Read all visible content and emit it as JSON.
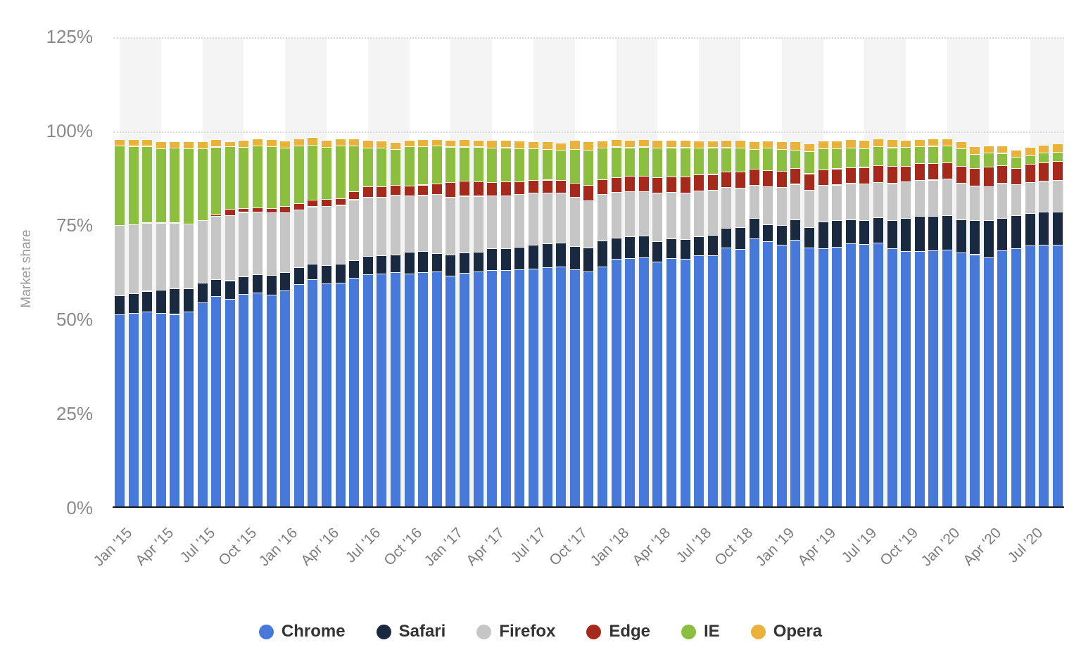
{
  "y_axis": {
    "title": "Market share",
    "ticks": [
      "0%",
      "25%",
      "50%",
      "75%",
      "100%",
      "125%"
    ]
  },
  "x_axis": {
    "tick_labels": [
      "Jan '15",
      "Apr '15",
      "Jul '15",
      "Oct '15",
      "Jan '16",
      "Apr '16",
      "Jul '16",
      "Oct '16",
      "Jan '17",
      "Apr '17",
      "Jul '17",
      "Oct '17",
      "Jan '18",
      "Apr '18",
      "Jul '18",
      "Oct '18",
      "Jan '19",
      "Apr '19",
      "Jul '19",
      "Oct '19",
      "Jan '20",
      "Apr '20",
      "Jul '20"
    ]
  },
  "legend": {
    "items": [
      {
        "label": "Chrome",
        "color": "#4679DA"
      },
      {
        "label": "Safari",
        "color": "#19293F"
      },
      {
        "label": "Firefox",
        "color": "#C6C6C6"
      },
      {
        "label": "Edge",
        "color": "#A52A1C"
      },
      {
        "label": "IE",
        "color": "#8CBF3F"
      },
      {
        "label": "Opera",
        "color": "#E9B23A"
      }
    ]
  },
  "chart_data": {
    "type": "bar",
    "stacked": true,
    "unit": "%",
    "title": "",
    "xlabel": "",
    "ylabel": "Market share",
    "ylim": [
      0,
      125
    ],
    "gridlines_visible_at": [
      100,
      125
    ],
    "legend_position": "bottom",
    "categories": [
      "Jan '15",
      "Feb '15",
      "Mar '15",
      "Apr '15",
      "May '15",
      "Jun '15",
      "Jul '15",
      "Aug '15",
      "Sep '15",
      "Oct '15",
      "Nov '15",
      "Dec '15",
      "Jan '16",
      "Feb '16",
      "Mar '16",
      "Apr '16",
      "May '16",
      "Jun '16",
      "Jul '16",
      "Aug '16",
      "Sep '16",
      "Oct '16",
      "Nov '16",
      "Dec '16",
      "Jan '17",
      "Feb '17",
      "Mar '17",
      "Apr '17",
      "May '17",
      "Jun '17",
      "Jul '17",
      "Aug '17",
      "Sep '17",
      "Oct '17",
      "Nov '17",
      "Dec '17",
      "Jan '18",
      "Feb '18",
      "Mar '18",
      "Apr '18",
      "May '18",
      "Jun '18",
      "Jul '18",
      "Aug '18",
      "Sep '18",
      "Oct '18",
      "Nov '18",
      "Dec '18",
      "Jan '19",
      "Feb '19",
      "Mar '19",
      "Apr '19",
      "May '19",
      "Jun '19",
      "Jul '19",
      "Aug '19",
      "Sep '19",
      "Oct '19",
      "Nov '19",
      "Dec '19",
      "Jan '20",
      "Feb '20",
      "Mar '20",
      "Apr '20",
      "May '20",
      "Jun '20",
      "Jul '20",
      "Aug '20",
      "Sep '20"
    ],
    "series": [
      {
        "name": "Chrome",
        "color": "#4679DA",
        "values": [
          51.4,
          51.8,
          52.1,
          51.8,
          51.5,
          52.2,
          54.6,
          56.3,
          55.5,
          56.8,
          57.2,
          56.6,
          57.8,
          59.4,
          60.7,
          59.6,
          59.8,
          61.1,
          62.1,
          62.2,
          62.6,
          62.2,
          62.6,
          62.8,
          61.7,
          62.4,
          62.8,
          63.2,
          63.2,
          63.4,
          63.6,
          63.9,
          64.1,
          63.4,
          62.8,
          64.1,
          66.2,
          66.4,
          66.5,
          65.4,
          66.4,
          66.2,
          67.1,
          67.1,
          69.2,
          68.8,
          71.6,
          70.8,
          69.9,
          71.2,
          69.2,
          69.0,
          69.3,
          70.3,
          70.1,
          70.5,
          69.0,
          68.2,
          68.3,
          68.4,
          68.6,
          67.9,
          67.4,
          66.5,
          68.4,
          69.0,
          69.7,
          69.9,
          69.9
        ]
      },
      {
        "name": "Safari",
        "color": "#19293F",
        "values": [
          5.0,
          5.2,
          5.6,
          6.2,
          6.8,
          6.2,
          5.3,
          4.5,
          5.0,
          4.7,
          4.9,
          5.3,
          4.9,
          4.5,
          4.2,
          4.9,
          5.1,
          4.7,
          4.8,
          4.9,
          4.7,
          5.8,
          5.6,
          4.9,
          5.6,
          5.4,
          5.3,
          5.8,
          5.8,
          5.9,
          6.3,
          6.4,
          6.4,
          6.1,
          6.4,
          6.9,
          5.6,
          5.7,
          5.8,
          5.4,
          5.2,
          5.2,
          5.0,
          5.4,
          5.2,
          5.8,
          5.4,
          4.5,
          5.2,
          5.4,
          5.4,
          7.1,
          7.1,
          6.3,
          6.3,
          6.7,
          7.4,
          8.8,
          9.3,
          9.2,
          9.2,
          8.7,
          9.0,
          9.9,
          8.6,
          8.8,
          8.6,
          8.8,
          8.8
        ]
      },
      {
        "name": "Firefox",
        "color": "#C6C6C6",
        "values": [
          18.7,
          18.4,
          18.1,
          17.8,
          17.5,
          17.2,
          16.5,
          16.8,
          17.3,
          17.1,
          16.6,
          16.6,
          15.8,
          15.4,
          15.2,
          15.7,
          15.6,
          16.2,
          15.7,
          15.6,
          15.9,
          15.0,
          14.9,
          15.7,
          15.3,
          15.1,
          14.8,
          14.0,
          14.0,
          14.1,
          13.8,
          13.4,
          13.2,
          13.1,
          12.5,
          12.4,
          12.1,
          12.0,
          11.9,
          12.9,
          12.4,
          12.4,
          12.2,
          12.0,
          10.8,
          10.4,
          8.8,
          10.1,
          10.1,
          9.5,
          9.9,
          9.7,
          9.5,
          9.7,
          9.8,
          9.3,
          9.9,
          9.7,
          9.5,
          9.6,
          9.7,
          9.8,
          9.2,
          9.0,
          9.4,
          8.2,
          8.2,
          8.2,
          8.4
        ]
      },
      {
        "name": "Edge",
        "color": "#A52A1C",
        "values": [
          0,
          0,
          0,
          0,
          0,
          0,
          0,
          0.3,
          1.6,
          1.1,
          1.2,
          1.2,
          1.7,
          1.7,
          1.8,
          1.9,
          1.8,
          2.1,
          2.8,
          2.8,
          2.6,
          2.6,
          2.8,
          2.8,
          3.9,
          4.0,
          3.9,
          3.5,
          3.7,
          3.3,
          3.4,
          3.5,
          3.4,
          3.8,
          4.1,
          3.9,
          4.0,
          4.1,
          4.1,
          4.2,
          4.1,
          4.2,
          4.3,
          4.2,
          4.1,
          4.3,
          4.3,
          4.3,
          4.3,
          4.2,
          4.4,
          4.1,
          4.3,
          4.2,
          4.4,
          4.5,
          4.5,
          4.1,
          4.5,
          4.4,
          4.3,
          4.5,
          4.7,
          5.3,
          4.6,
          4.3,
          4.9,
          4.9,
          5.0
        ]
      },
      {
        "name": "IE",
        "color": "#8CBF3F",
        "values": [
          21.2,
          20.8,
          20.4,
          19.8,
          19.9,
          20.0,
          19.2,
          18.1,
          16.7,
          16.2,
          16.4,
          16.4,
          15.5,
          15.3,
          14.6,
          13.8,
          14.0,
          12.2,
          10.3,
          10.2,
          9.5,
          10.5,
          10.2,
          10.1,
          9.5,
          9.1,
          9.2,
          9.2,
          9.1,
          8.9,
          8.4,
          8.2,
          8.0,
          8.9,
          9.3,
          8.4,
          8.1,
          7.6,
          7.7,
          7.8,
          7.7,
          7.8,
          7.1,
          7.1,
          6.5,
          6.4,
          5.2,
          6.0,
          5.8,
          4.9,
          5.9,
          5.6,
          5.4,
          5.2,
          5.0,
          5.1,
          5.0,
          5.1,
          4.5,
          4.6,
          4.5,
          4.6,
          3.7,
          3.7,
          3.3,
          3.0,
          2.3,
          2.6,
          2.5
        ]
      },
      {
        "name": "Opera",
        "color": "#E9B23A",
        "values": [
          1.7,
          1.8,
          1.7,
          1.8,
          1.7,
          1.8,
          1.8,
          1.9,
          1.3,
          1.9,
          1.8,
          1.8,
          1.9,
          1.9,
          2.0,
          1.9,
          1.8,
          1.8,
          2.1,
          2.0,
          1.9,
          1.7,
          1.8,
          1.6,
          1.8,
          1.9,
          1.8,
          2.1,
          2.0,
          2.1,
          2.0,
          2.0,
          1.9,
          2.5,
          2.3,
          2.0,
          1.9,
          2.0,
          1.9,
          2.1,
          2.0,
          2.0,
          2.0,
          1.9,
          2.0,
          2.1,
          2.1,
          2.0,
          2.2,
          2.2,
          2.1,
          2.1,
          2.1,
          2.2,
          2.2,
          2.0,
          2.1,
          1.9,
          1.8,
          1.9,
          1.8,
          2.0,
          2.1,
          1.9,
          2.0,
          1.9,
          2.2,
          2.0,
          2.2
        ]
      }
    ]
  }
}
